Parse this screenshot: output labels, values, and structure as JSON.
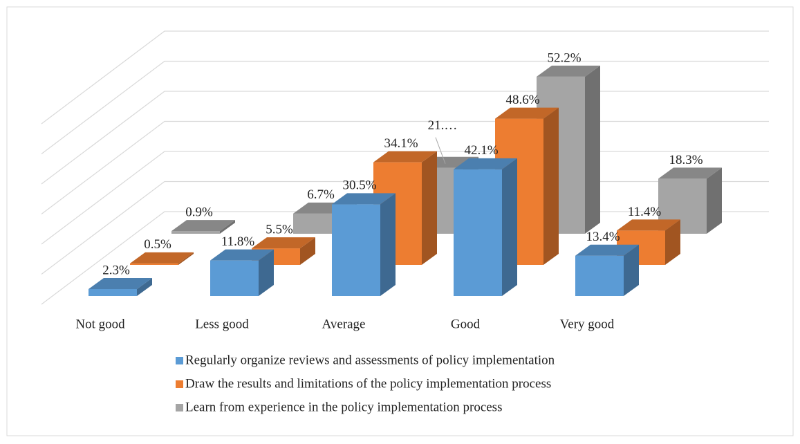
{
  "chart_data": {
    "type": "bar3d",
    "categories": [
      "Not good",
      "Less good",
      "Average",
      "Good",
      "Very good"
    ],
    "series": [
      {
        "name": "Regularly organize reviews and assessments of policy implementation",
        "color": "#5b9bd5",
        "values": [
          2.3,
          11.8,
          30.5,
          42.1,
          13.4
        ],
        "value_labels": [
          "2.3%",
          "11.8%",
          "30.5%",
          "42.1%",
          "13.4%"
        ]
      },
      {
        "name": "Draw the results and limitations of the policy implementation process",
        "color": "#ed7d31",
        "values": [
          0.5,
          5.5,
          34.1,
          48.6,
          11.4
        ],
        "value_labels": [
          "0.5%",
          "5.5%",
          "34.1%",
          "48.6%",
          "11.4%"
        ]
      },
      {
        "name": "Learn from experience in the policy implementation process",
        "color": "#a5a5a5",
        "values": [
          0.9,
          6.7,
          21.9,
          52.2,
          18.3
        ],
        "value_labels": [
          "0.9%",
          "6.7%",
          "21.…",
          "52.2%",
          "18.3%"
        ]
      }
    ],
    "ylim": [
      0,
      60
    ],
    "yticks": [
      0,
      10,
      20,
      30,
      40,
      50,
      60
    ],
    "ytick_labels": false,
    "grid": true,
    "legend": "bottom"
  }
}
